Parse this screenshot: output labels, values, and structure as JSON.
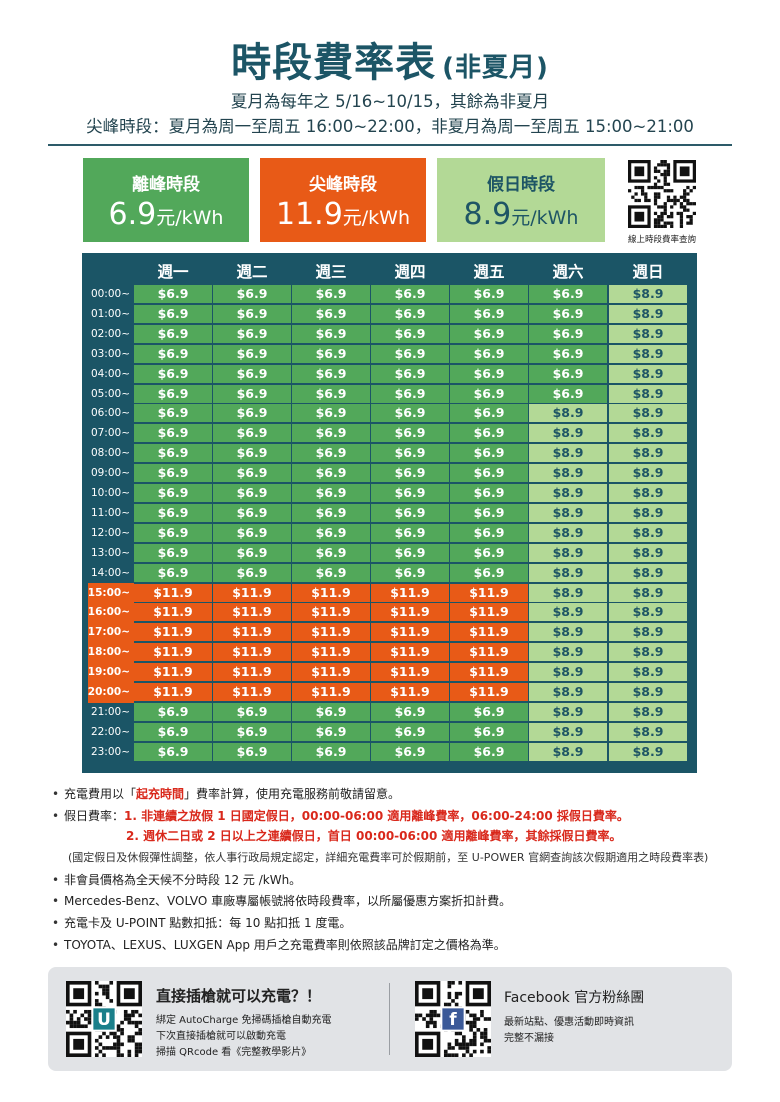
{
  "header": {
    "title": "時段費率表",
    "subtitle": "(非夏月)",
    "line1": "夏月為每年之 5/16~10/15，其餘為非夏月",
    "line2": "尖峰時段：夏月為周一至周五 16:00~22:00，非夏月為周一至周五 15:00~21:00"
  },
  "rate_cards": [
    {
      "label": "離峰時段",
      "price": "6.9",
      "unit": "元/kWh",
      "color": "#52a85a"
    },
    {
      "label": "尖峰時段",
      "price": "11.9",
      "unit": "元/kWh",
      "color": "#e85a17"
    },
    {
      "label": "假日時段",
      "price": "8.9",
      "unit": "元/kWh",
      "color": "#b3d996"
    }
  ],
  "qr_top": {
    "caption": "線上時段費率查詢"
  },
  "table": {
    "days": [
      "週一",
      "週二",
      "週三",
      "週四",
      "週五",
      "週六",
      "週日"
    ],
    "times": [
      "00:00~",
      "01:00~",
      "02:00~",
      "03:00~",
      "04:00~",
      "05:00~",
      "06:00~",
      "07:00~",
      "08:00~",
      "09:00~",
      "10:00~",
      "11:00~",
      "12:00~",
      "13:00~",
      "14:00~",
      "15:00~",
      "16:00~",
      "17:00~",
      "18:00~",
      "19:00~",
      "20:00~",
      "21:00~",
      "22:00~",
      "23:00~"
    ],
    "rows": [
      [
        "$6.9",
        "$6.9",
        "$6.9",
        "$6.9",
        "$6.9",
        "$6.9",
        "$8.9"
      ],
      [
        "$6.9",
        "$6.9",
        "$6.9",
        "$6.9",
        "$6.9",
        "$6.9",
        "$8.9"
      ],
      [
        "$6.9",
        "$6.9",
        "$6.9",
        "$6.9",
        "$6.9",
        "$6.9",
        "$8.9"
      ],
      [
        "$6.9",
        "$6.9",
        "$6.9",
        "$6.9",
        "$6.9",
        "$6.9",
        "$8.9"
      ],
      [
        "$6.9",
        "$6.9",
        "$6.9",
        "$6.9",
        "$6.9",
        "$6.9",
        "$8.9"
      ],
      [
        "$6.9",
        "$6.9",
        "$6.9",
        "$6.9",
        "$6.9",
        "$6.9",
        "$8.9"
      ],
      [
        "$6.9",
        "$6.9",
        "$6.9",
        "$6.9",
        "$6.9",
        "$8.9",
        "$8.9"
      ],
      [
        "$6.9",
        "$6.9",
        "$6.9",
        "$6.9",
        "$6.9",
        "$8.9",
        "$8.9"
      ],
      [
        "$6.9",
        "$6.9",
        "$6.9",
        "$6.9",
        "$6.9",
        "$8.9",
        "$8.9"
      ],
      [
        "$6.9",
        "$6.9",
        "$6.9",
        "$6.9",
        "$6.9",
        "$8.9",
        "$8.9"
      ],
      [
        "$6.9",
        "$6.9",
        "$6.9",
        "$6.9",
        "$6.9",
        "$8.9",
        "$8.9"
      ],
      [
        "$6.9",
        "$6.9",
        "$6.9",
        "$6.9",
        "$6.9",
        "$8.9",
        "$8.9"
      ],
      [
        "$6.9",
        "$6.9",
        "$6.9",
        "$6.9",
        "$6.9",
        "$8.9",
        "$8.9"
      ],
      [
        "$6.9",
        "$6.9",
        "$6.9",
        "$6.9",
        "$6.9",
        "$8.9",
        "$8.9"
      ],
      [
        "$6.9",
        "$6.9",
        "$6.9",
        "$6.9",
        "$6.9",
        "$8.9",
        "$8.9"
      ],
      [
        "$11.9",
        "$11.9",
        "$11.9",
        "$11.9",
        "$11.9",
        "$8.9",
        "$8.9"
      ],
      [
        "$11.9",
        "$11.9",
        "$11.9",
        "$11.9",
        "$11.9",
        "$8.9",
        "$8.9"
      ],
      [
        "$11.9",
        "$11.9",
        "$11.9",
        "$11.9",
        "$11.9",
        "$8.9",
        "$8.9"
      ],
      [
        "$11.9",
        "$11.9",
        "$11.9",
        "$11.9",
        "$11.9",
        "$8.9",
        "$8.9"
      ],
      [
        "$11.9",
        "$11.9",
        "$11.9",
        "$11.9",
        "$11.9",
        "$8.9",
        "$8.9"
      ],
      [
        "$11.9",
        "$11.9",
        "$11.9",
        "$11.9",
        "$11.9",
        "$8.9",
        "$8.9"
      ],
      [
        "$6.9",
        "$6.9",
        "$6.9",
        "$6.9",
        "$6.9",
        "$8.9",
        "$8.9"
      ],
      [
        "$6.9",
        "$6.9",
        "$6.9",
        "$6.9",
        "$6.9",
        "$8.9",
        "$8.9"
      ],
      [
        "$6.9",
        "$6.9",
        "$6.9",
        "$6.9",
        "$6.9",
        "$8.9",
        "$8.9"
      ]
    ]
  },
  "notes": {
    "n1_pre": "充電費用以「",
    "n1_red": "起充時間",
    "n1_post": "」費率計算，使用充電服務前敬請留意。",
    "n2_label": "假日費率：",
    "n2_item1": "1. 非連續之放假 1 日國定假日，00:00-06:00 適用離峰費率，06:00-24:00 採假日費率。",
    "n2_item2": "2. 週休二日或 2 日以上之連續假日，首日 00:00-06:00 適用離峰費率，其餘採假日費率。",
    "n2_remark": "(國定假日及休假彈性調整，依人事行政局規定認定，詳細充電費率可於假期前，至 U-POWER 官網查詢該次假期適用之時段費率表)",
    "n3": "非會員價格為全天候不分時段 12 元 /kWh。",
    "n4": "Mercedes-Benz、VOLVO 車廠專屬帳號將依時段費率，以所屬優惠方案折扣計費。",
    "n5": "充電卡及 U-POINT 點數扣抵：每 10 點扣抵 1 度電。",
    "n6": "TOYOTA、LEXUS、LUXGEN App 用戶之充電費率則依照該品牌訂定之價格為準。",
    "bullet": "•"
  },
  "footer": {
    "left": {
      "title": "直接插槍就可以充電？！",
      "lines": [
        "綁定 AutoCharge 免掃碼插槍自動充電",
        "下次直接插槍就可以啟動充電",
        "掃描 QRcode 看《完整教學影片》"
      ],
      "badge": "U"
    },
    "right": {
      "title": "Facebook 官方粉絲團",
      "lines": [
        "最新站點、優惠活動即時資訊",
        "完整不漏接"
      ],
      "badge": "f"
    }
  }
}
